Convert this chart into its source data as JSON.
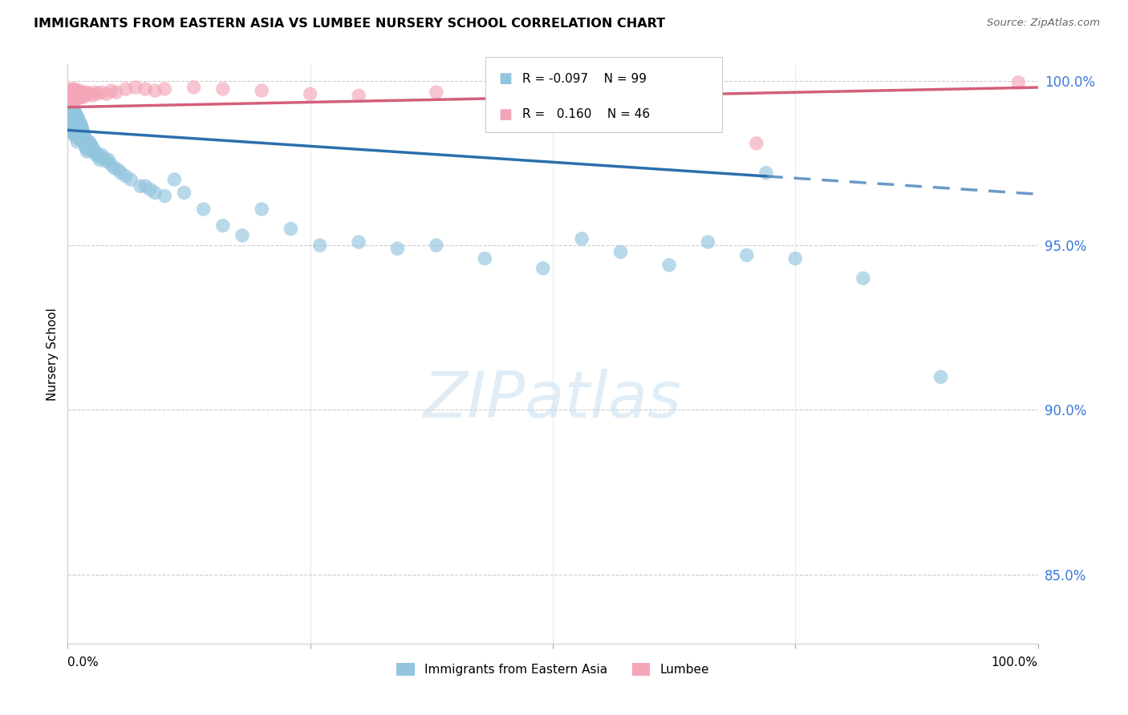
{
  "title": "IMMIGRANTS FROM EASTERN ASIA VS LUMBEE NURSERY SCHOOL CORRELATION CHART",
  "source": "Source: ZipAtlas.com",
  "ylabel": "Nursery School",
  "legend_blue_label": "Immigrants from Eastern Asia",
  "legend_pink_label": "Lumbee",
  "r_blue": -0.097,
  "n_blue": 99,
  "r_pink": 0.16,
  "n_pink": 46,
  "xlim": [
    0.0,
    1.0
  ],
  "ylim": [
    0.829,
    1.005
  ],
  "yticks": [
    0.85,
    0.9,
    0.95,
    1.0
  ],
  "ytick_labels": [
    "85.0%",
    "90.0%",
    "95.0%",
    "100.0%"
  ],
  "blue_color": "#92c5de",
  "pink_color": "#f4a6b8",
  "blue_line_color": "#2c6fad",
  "pink_line_color": "#d45f7a",
  "background_color": "#ffffff",
  "blue_line_start_y": 0.985,
  "blue_line_end_y": 0.97,
  "blue_line_solid_end_x": 0.72,
  "pink_line_start_y": 0.992,
  "pink_line_end_y": 0.998,
  "blue_x": [
    0.002,
    0.003,
    0.003,
    0.004,
    0.004,
    0.004,
    0.005,
    0.005,
    0.005,
    0.005,
    0.006,
    0.006,
    0.006,
    0.007,
    0.007,
    0.007,
    0.007,
    0.008,
    0.008,
    0.008,
    0.008,
    0.009,
    0.009,
    0.009,
    0.01,
    0.01,
    0.01,
    0.01,
    0.011,
    0.011,
    0.011,
    0.012,
    0.012,
    0.012,
    0.013,
    0.013,
    0.013,
    0.014,
    0.014,
    0.015,
    0.015,
    0.016,
    0.016,
    0.017,
    0.018,
    0.018,
    0.019,
    0.019,
    0.02,
    0.02,
    0.021,
    0.022,
    0.022,
    0.023,
    0.024,
    0.025,
    0.026,
    0.028,
    0.029,
    0.03,
    0.032,
    0.033,
    0.035,
    0.037,
    0.04,
    0.042,
    0.045,
    0.048,
    0.052,
    0.055,
    0.06,
    0.065,
    0.075,
    0.08,
    0.085,
    0.09,
    0.1,
    0.11,
    0.12,
    0.14,
    0.16,
    0.18,
    0.2,
    0.23,
    0.26,
    0.3,
    0.34,
    0.38,
    0.43,
    0.49,
    0.53,
    0.57,
    0.62,
    0.66,
    0.7,
    0.72,
    0.75,
    0.82,
    0.9
  ],
  "blue_y": [
    0.9895,
    0.9905,
    0.9875,
    0.992,
    0.988,
    0.985,
    0.9915,
    0.9895,
    0.987,
    0.984,
    0.9905,
    0.988,
    0.9855,
    0.991,
    0.989,
    0.9865,
    0.984,
    0.99,
    0.988,
    0.9855,
    0.983,
    0.9895,
    0.987,
    0.9845,
    0.989,
    0.9865,
    0.984,
    0.9815,
    0.9885,
    0.986,
    0.9835,
    0.9875,
    0.985,
    0.9825,
    0.987,
    0.9845,
    0.982,
    0.9865,
    0.984,
    0.9855,
    0.983,
    0.9845,
    0.982,
    0.9835,
    0.9825,
    0.98,
    0.982,
    0.9795,
    0.981,
    0.9785,
    0.98,
    0.9815,
    0.979,
    0.981,
    0.9805,
    0.98,
    0.9795,
    0.9785,
    0.9775,
    0.978,
    0.977,
    0.976,
    0.9775,
    0.9765,
    0.9755,
    0.976,
    0.9745,
    0.9735,
    0.973,
    0.972,
    0.971,
    0.97,
    0.968,
    0.968,
    0.967,
    0.966,
    0.965,
    0.97,
    0.966,
    0.961,
    0.956,
    0.953,
    0.961,
    0.955,
    0.95,
    0.951,
    0.949,
    0.95,
    0.946,
    0.943,
    0.952,
    0.948,
    0.944,
    0.951,
    0.947,
    0.972,
    0.946,
    0.94,
    0.91
  ],
  "pink_x": [
    0.003,
    0.004,
    0.004,
    0.005,
    0.005,
    0.006,
    0.006,
    0.007,
    0.007,
    0.008,
    0.008,
    0.009,
    0.009,
    0.01,
    0.01,
    0.011,
    0.012,
    0.012,
    0.013,
    0.014,
    0.015,
    0.016,
    0.017,
    0.018,
    0.02,
    0.022,
    0.025,
    0.028,
    0.03,
    0.035,
    0.04,
    0.045,
    0.05,
    0.06,
    0.07,
    0.08,
    0.09,
    0.1,
    0.13,
    0.16,
    0.2,
    0.25,
    0.3,
    0.38,
    0.71,
    0.98
  ],
  "pink_y": [
    0.996,
    0.994,
    0.9975,
    0.995,
    0.997,
    0.9945,
    0.996,
    0.9955,
    0.9975,
    0.9945,
    0.9965,
    0.995,
    0.997,
    0.9945,
    0.996,
    0.9965,
    0.997,
    0.995,
    0.996,
    0.9955,
    0.9965,
    0.995,
    0.996,
    0.9955,
    0.9965,
    0.996,
    0.9955,
    0.9965,
    0.996,
    0.9965,
    0.996,
    0.997,
    0.9965,
    0.9975,
    0.998,
    0.9975,
    0.997,
    0.9975,
    0.998,
    0.9975,
    0.997,
    0.996,
    0.9955,
    0.9965,
    0.981,
    0.9995
  ]
}
